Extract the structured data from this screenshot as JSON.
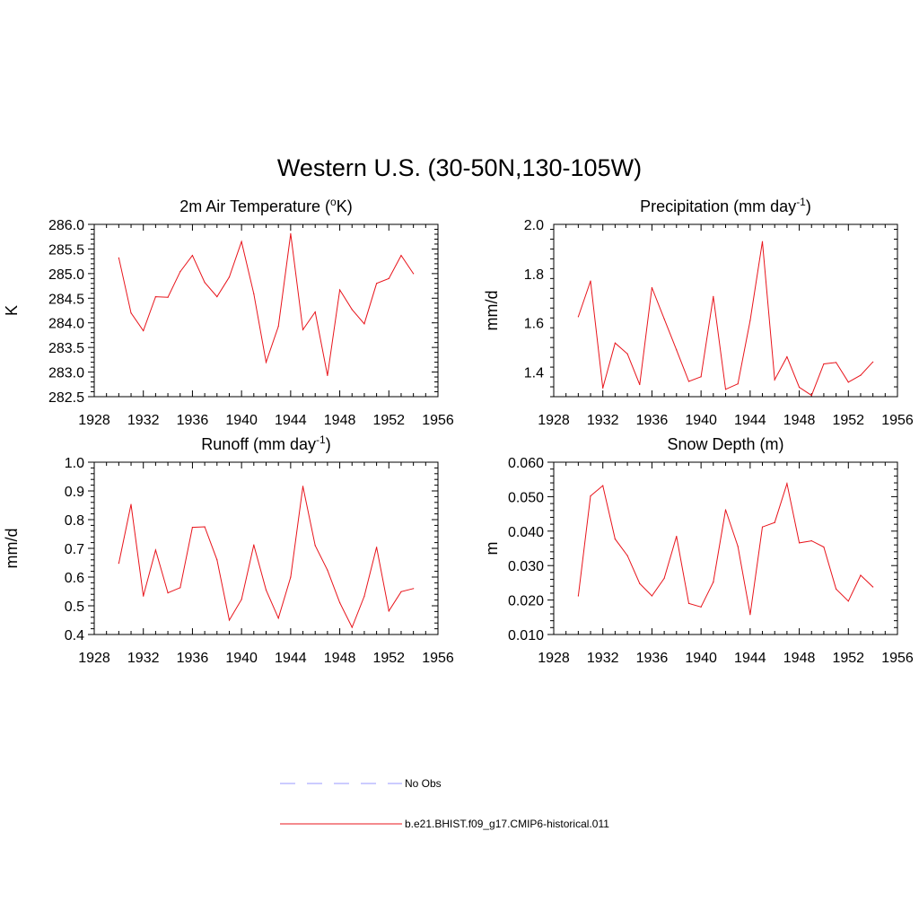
{
  "title": "Western U.S. (30-50N,130-105W)",
  "colors": {
    "model_line": "#e8141b",
    "obs_line": "#9a9aff",
    "axis": "#000000"
  },
  "legend": [
    {
      "label": "No Obs",
      "style": "dashed",
      "color": "#9a9aff"
    },
    {
      "label": "b.e21.BHIST.f09_g17.CMIP6-historical.011",
      "style": "solid",
      "color": "#e8141b"
    }
  ],
  "chart_data": [
    {
      "type": "line",
      "title": "2m Air Temperature (°K)",
      "title_parts": [
        "2m Air Temperature (",
        "o",
        "K)"
      ],
      "xlabel": "",
      "ylabel": "K",
      "xlim": [
        1928,
        1956
      ],
      "ylim": [
        282.5,
        286.0
      ],
      "xticks": [
        "1928",
        "1932",
        "1936",
        "1940",
        "1944",
        "1948",
        "1952",
        "1956"
      ],
      "yticks": [
        "282.5",
        "283.0",
        "283.5",
        "284.0",
        "284.5",
        "285.0",
        "285.5",
        "286.0"
      ],
      "grid": false,
      "x": [
        1930,
        1931,
        1932,
        1933,
        1934,
        1935,
        1936,
        1937,
        1938,
        1939,
        1940,
        1941,
        1942,
        1943,
        1944,
        1945,
        1946,
        1947,
        1948,
        1949,
        1950,
        1951,
        1952,
        1953,
        1954
      ],
      "series": [
        {
          "name": "b.e21.BHIST.f09_g17.CMIP6-historical.011",
          "values": [
            285.32,
            284.2,
            283.84,
            284.53,
            284.52,
            285.04,
            285.37,
            284.82,
            284.53,
            284.93,
            285.65,
            284.59,
            283.2,
            283.93,
            285.81,
            283.86,
            284.22,
            282.93,
            284.67,
            284.27,
            283.98,
            284.8,
            284.9,
            285.37,
            285.0
          ]
        }
      ]
    },
    {
      "type": "line",
      "title": "Precipitation (mm day-1)",
      "title_parts": [
        "Precipitation (mm day",
        "-1",
        ")"
      ],
      "xlabel": "",
      "ylabel": "mm/d",
      "xlim": [
        1928,
        1956
      ],
      "ylim": [
        1.3,
        2.0
      ],
      "xticks": [
        "1928",
        "1932",
        "1936",
        "1940",
        "1944",
        "1948",
        "1952",
        "1956"
      ],
      "yticks": [
        "1.4",
        "1.6",
        "1.8",
        "2.0"
      ],
      "grid": false,
      "x": [
        1930,
        1931,
        1932,
        1933,
        1934,
        1935,
        1936,
        1937,
        1938,
        1939,
        1940,
        1941,
        1942,
        1943,
        1944,
        1945,
        1946,
        1947,
        1948,
        1949,
        1950,
        1951,
        1952,
        1953,
        1954
      ],
      "series": [
        {
          "name": "b.e21.BHIST.f09_g17.CMIP6-historical.011",
          "values": [
            1.625,
            1.77,
            1.335,
            1.518,
            1.474,
            1.349,
            1.743,
            1.616,
            1.49,
            1.362,
            1.381,
            1.707,
            1.33,
            1.352,
            1.61,
            1.93,
            1.369,
            1.462,
            1.338,
            1.305,
            1.433,
            1.439,
            1.359,
            1.387,
            1.441
          ]
        }
      ]
    },
    {
      "type": "line",
      "title": "Runoff (mm day-1)",
      "title_parts": [
        "Runoff (mm day",
        "-1",
        ")"
      ],
      "xlabel": "",
      "ylabel": "mm/d",
      "xlim": [
        1928,
        1956
      ],
      "ylim": [
        0.4,
        1.0
      ],
      "xticks": [
        "1928",
        "1932",
        "1936",
        "1940",
        "1944",
        "1948",
        "1952",
        "1956"
      ],
      "yticks": [
        "0.4",
        "0.5",
        "0.6",
        "0.7",
        "0.8",
        "0.9",
        "1.0"
      ],
      "grid": false,
      "x": [
        1930,
        1931,
        1932,
        1933,
        1934,
        1935,
        1936,
        1937,
        1938,
        1939,
        1940,
        1941,
        1942,
        1943,
        1944,
        1945,
        1946,
        1947,
        1948,
        1949,
        1950,
        1951,
        1952,
        1953,
        1954
      ],
      "series": [
        {
          "name": "b.e21.BHIST.f09_g17.CMIP6-historical.011",
          "values": [
            0.648,
            0.853,
            0.534,
            0.694,
            0.545,
            0.563,
            0.773,
            0.775,
            0.66,
            0.45,
            0.522,
            0.712,
            0.555,
            0.457,
            0.6,
            0.916,
            0.71,
            0.624,
            0.511,
            0.425,
            0.533,
            0.704,
            0.482,
            0.549,
            0.56
          ]
        }
      ]
    },
    {
      "type": "line",
      "title": "Snow Depth (m)",
      "title_parts": [
        "Snow Depth (m)"
      ],
      "xlabel": "",
      "ylabel": "m",
      "xlim": [
        1928,
        1956
      ],
      "ylim": [
        0.01,
        0.06
      ],
      "xticks": [
        "1928",
        "1932",
        "1936",
        "1940",
        "1944",
        "1948",
        "1952",
        "1956"
      ],
      "yticks": [
        "0.010",
        "0.020",
        "0.030",
        "0.040",
        "0.050",
        "0.060"
      ],
      "grid": false,
      "x": [
        1930,
        1931,
        1932,
        1933,
        1934,
        1935,
        1936,
        1937,
        1938,
        1939,
        1940,
        1941,
        1942,
        1943,
        1944,
        1945,
        1946,
        1947,
        1948,
        1949,
        1950,
        1951,
        1952,
        1953,
        1954
      ],
      "series": [
        {
          "name": "b.e21.BHIST.f09_g17.CMIP6-historical.011",
          "values": [
            0.0212,
            0.0502,
            0.0532,
            0.0377,
            0.0329,
            0.0248,
            0.0212,
            0.0263,
            0.0385,
            0.019,
            0.018,
            0.0252,
            0.0462,
            0.0356,
            0.0158,
            0.0412,
            0.0425,
            0.0538,
            0.0366,
            0.0372,
            0.0354,
            0.0232,
            0.0197,
            0.0272,
            0.0238
          ]
        }
      ]
    }
  ]
}
